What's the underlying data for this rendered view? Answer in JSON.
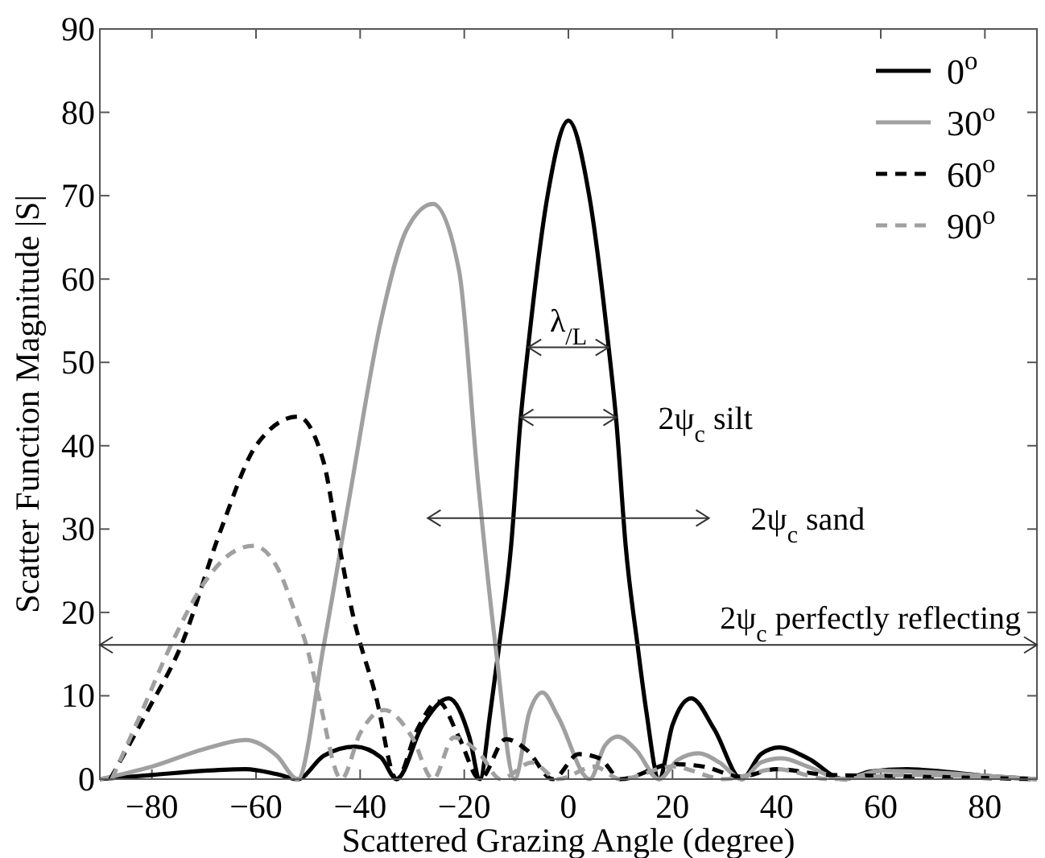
{
  "chart_data": {
    "type": "line",
    "xlabel": "Scattered Grazing Angle (degree)",
    "ylabel": "Scatter Function Magnitude |S|",
    "xlim": [
      -90,
      90
    ],
    "ylim": [
      0,
      90
    ],
    "xticks": [
      -80,
      -60,
      -40,
      -20,
      0,
      20,
      40,
      60,
      80
    ],
    "yticks": [
      0,
      10,
      20,
      30,
      40,
      50,
      60,
      70,
      80,
      90
    ],
    "grid": false,
    "legend": "top right",
    "marker": "none",
    "series": [
      {
        "name": "0$^{o}$",
        "color": "#000000",
        "line_style": "solid",
        "x": [
          -90,
          -80,
          -70,
          -62,
          -56,
          -52,
          -47,
          -41,
          -36,
          -33,
          -28,
          -23,
          -19,
          -17,
          -15,
          -13.3,
          -11,
          -9.2,
          -7.7,
          -4,
          0,
          4,
          7.7,
          9.2,
          11,
          13.3,
          15,
          17.4,
          20,
          23.6,
          28,
          33.3,
          37,
          40.5,
          46,
          52.8,
          58,
          65,
          72,
          80,
          90
        ],
        "values": [
          0,
          0.5,
          1.0,
          1.2,
          0.6,
          0,
          2.8,
          3.9,
          2.6,
          0,
          6.5,
          9.7,
          5,
          0,
          8,
          16,
          28,
          43,
          52,
          70,
          79,
          70,
          52,
          43,
          28,
          16,
          8,
          0,
          6.5,
          9.7,
          6,
          0,
          3,
          3.8,
          2.5,
          0,
          0.9,
          1.2,
          0.9,
          0.4,
          0
        ]
      },
      {
        "name": "30$^{o}$",
        "color": "#a0a0a0",
        "line_style": "solid",
        "x": [
          -90,
          -80,
          -70,
          -62,
          -56,
          -52,
          -47,
          -42,
          -36,
          -31,
          -26,
          -21,
          -17.4,
          -14,
          -10.3,
          -7.5,
          -5,
          -2,
          4.1,
          7,
          9.5,
          13,
          17.4,
          21,
          25,
          29,
          33.3,
          37,
          41,
          46,
          52.8,
          60,
          70,
          80,
          90
        ],
        "values": [
          0,
          1.5,
          3.6,
          4.7,
          2.8,
          0,
          16,
          34,
          55,
          66,
          69,
          61,
          36,
          16,
          0,
          8,
          10.4,
          7.5,
          0,
          4,
          5.1,
          3.5,
          0,
          2.3,
          3.1,
          2,
          0,
          2,
          2.5,
          1.5,
          0,
          1,
          0.8,
          0.4,
          0
        ]
      },
      {
        "name": "60$^{o}$",
        "color": "#000000",
        "line_style": "dashed",
        "x": [
          -88,
          -81,
          -74.4,
          -66.7,
          -60,
          -52,
          -47,
          -44.6,
          -41.5,
          -37,
          -33,
          -29,
          -25,
          -21,
          -17,
          -12,
          -8,
          -3,
          2,
          6,
          10,
          20,
          26,
          33,
          40,
          50,
          60,
          75,
          90
        ],
        "values": [
          0,
          8,
          16,
          30,
          40,
          43.5,
          38,
          30,
          20,
          10,
          0,
          6,
          9.3,
          5,
          0,
          4.8,
          3.5,
          0,
          3,
          2.5,
          0,
          1.8,
          1.5,
          0.3,
          1.2,
          0.5,
          0.4,
          0.2,
          0
        ]
      },
      {
        "name": "90$^{o}$",
        "color": "#a0a0a0",
        "line_style": "dashed",
        "x": [
          -87.7,
          -82,
          -76.4,
          -70,
          -65,
          -60.5,
          -56,
          -52.5,
          -50.3,
          -48,
          -43.6,
          -40,
          -35.4,
          -30,
          -26,
          -22,
          -17,
          -13,
          -7,
          -2,
          5,
          10,
          20,
          30,
          40,
          50,
          65,
          90
        ],
        "values": [
          0,
          8,
          16,
          23.5,
          27,
          28,
          25.5,
          20,
          16,
          10,
          0,
          5.5,
          8.3,
          5,
          0,
          5,
          3,
          0,
          2,
          0,
          1.5,
          0,
          1.5,
          0,
          1.2,
          0,
          0.5,
          0
        ]
      }
    ],
    "ref_lines": [
      {
        "axis": "y",
        "value": 16.1,
        "label": "2ψ$_{c}$ perfectly reflecting",
        "color": "#333333",
        "line_style": "solid"
      }
    ],
    "annotations": [
      {
        "text": "λ$_{/L}$",
        "x": 7.7,
        "y": 51.8
      },
      {
        "text": "2ψ$_{c}$ silt",
        "x": 9.2,
        "y": 43.4
      },
      "2ψ$_{c}$ sand"
    ]
  }
}
